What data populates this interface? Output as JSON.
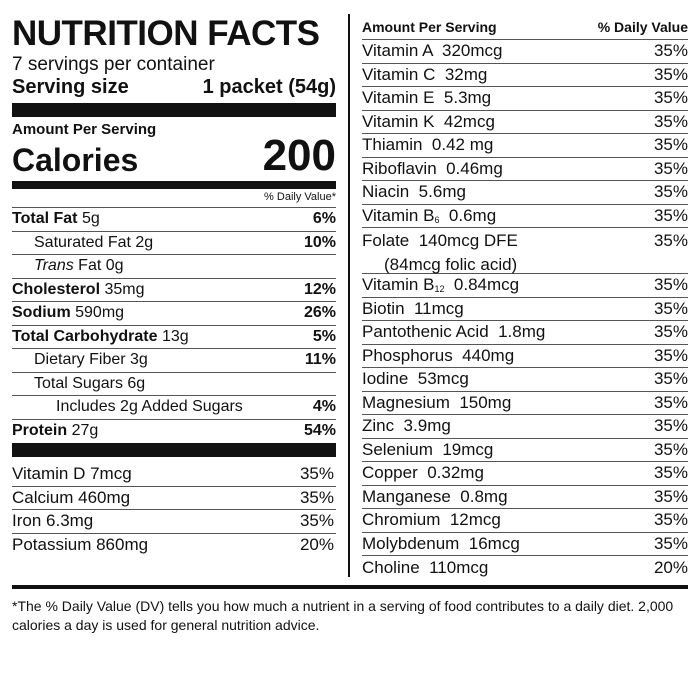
{
  "header": {
    "title": "NUTRITION FACTS",
    "servings": "7 servings per container",
    "serving_size_label": "Serving size",
    "serving_size_value": "1 packet (54g)",
    "amount_per_serving": "Amount Per Serving",
    "calories_label": "Calories",
    "calories_value": "200",
    "dv_header": "% Daily Value*"
  },
  "nutrients": [
    {
      "name": "Total Fat",
      "amount": "5g",
      "dv": "6%"
    },
    {
      "name": "Saturated Fat",
      "amount": "2g",
      "dv": "10%"
    },
    {
      "name": "Trans",
      "name_rest": "Fat",
      "amount": "0g",
      "dv": ""
    },
    {
      "name": "Cholesterol",
      "amount": "35mg",
      "dv": "12%"
    },
    {
      "name": "Sodium",
      "amount": "590mg",
      "dv": "26%"
    },
    {
      "name": "Total Carbohydrate",
      "amount": "13g",
      "dv": "5%"
    },
    {
      "name": "Dietary Fiber",
      "amount": "3g",
      "dv": "11%"
    },
    {
      "name": "Total Sugars",
      "amount": "6g",
      "dv": ""
    },
    {
      "name": "Includes 2g Added Sugars",
      "amount": "",
      "dv": "4%"
    },
    {
      "name": "Protein",
      "amount": "27g",
      "dv": "54%"
    }
  ],
  "left_vitamins": [
    {
      "label": "Vitamin D 7mcg",
      "dv": "35%"
    },
    {
      "label": "Calcium 460mg",
      "dv": "35%"
    },
    {
      "label": "Iron 6.3mg",
      "dv": "35%"
    },
    {
      "label": "Potassium 860mg",
      "dv": "20%"
    }
  ],
  "right_header": {
    "amount_per_serving": "Amount Per Serving",
    "dv": "% Daily Value"
  },
  "right_vitamins": [
    {
      "label": "Vitamin A  320mcg",
      "dv": "35%"
    },
    {
      "label": "Vitamin C  32mg",
      "dv": "35%"
    },
    {
      "label": "Vitamin E  5.3mg",
      "dv": "35%"
    },
    {
      "label": "Vitamin K  42mcg",
      "dv": "35%"
    },
    {
      "label": "Thiamin  0.42 mg",
      "dv": "35%"
    },
    {
      "label": "Riboflavin  0.46mg",
      "dv": "35%"
    },
    {
      "label": "Niacin  5.6mg",
      "dv": "35%"
    },
    {
      "label": "Vitamin B",
      "sub": "6",
      "label_rest": "  0.6mg",
      "dv": "35%"
    },
    {
      "label": "Folate  140mcg DFE",
      "label_line2": "(84mcg folic acid)",
      "dv": "35%"
    },
    {
      "label": "Vitamin B",
      "sub": "12",
      "label_rest": "  0.84mcg",
      "dv": "35%"
    },
    {
      "label": "Biotin  11mcg",
      "dv": "35%"
    },
    {
      "label": "Pantothenic Acid  1.8mg",
      "dv": "35%"
    },
    {
      "label": "Phosphorus  440mg",
      "dv": "35%"
    },
    {
      "label": "Iodine  53mcg",
      "dv": "35%"
    },
    {
      "label": "Magnesium  150mg",
      "dv": "35%"
    },
    {
      "label": "Zinc  3.9mg",
      "dv": "35%"
    },
    {
      "label": "Selenium  19mcg",
      "dv": "35%"
    },
    {
      "label": "Copper  0.32mg",
      "dv": "35%"
    },
    {
      "label": "Manganese  0.8mg",
      "dv": "35%"
    },
    {
      "label": "Chromium  12mcg",
      "dv": "35%"
    },
    {
      "label": "Molybdenum  16mcg",
      "dv": "35%"
    },
    {
      "label": "Choline  110mcg",
      "dv": "20%"
    }
  ],
  "footnote": "*The % Daily Value (DV) tells you how  much a nutrient in a serving of food contributes to a daily diet. 2,000 calories a day is used for general nutrition advice."
}
